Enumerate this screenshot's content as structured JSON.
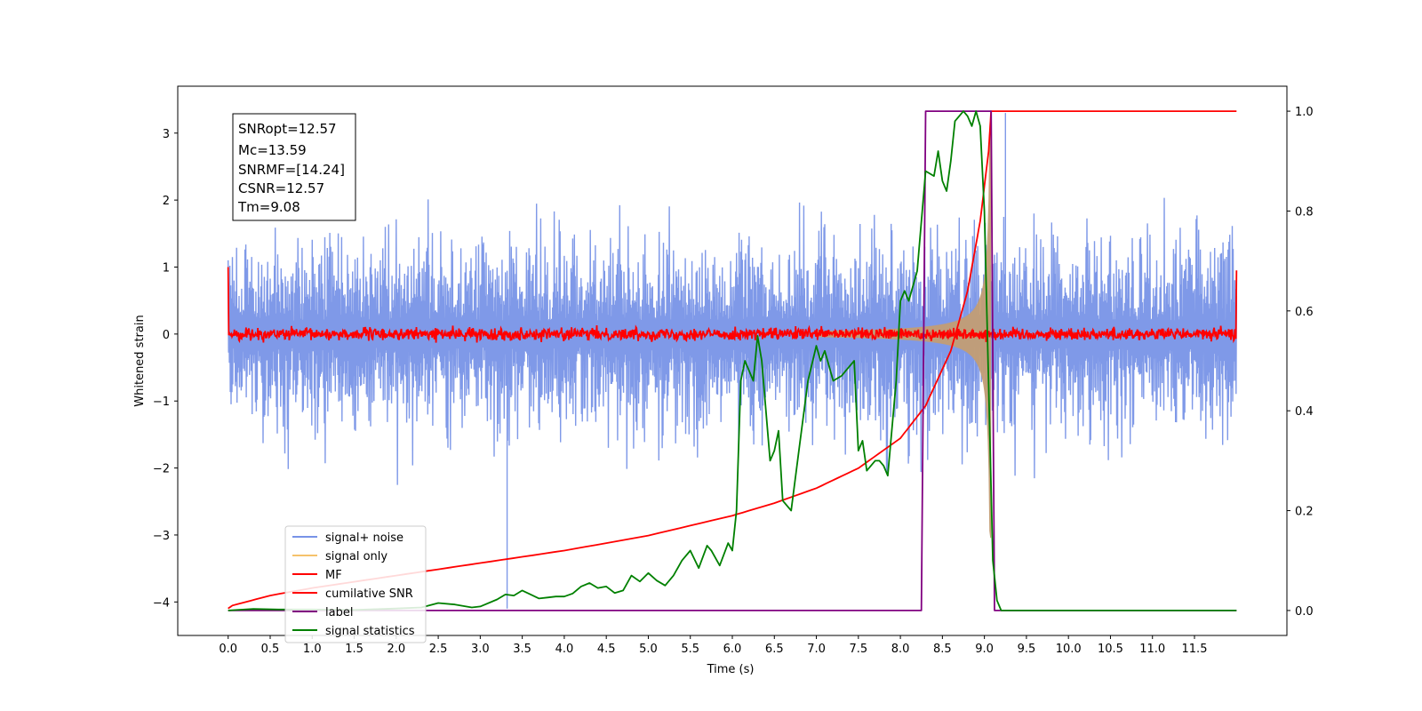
{
  "chart_data": {
    "type": "line",
    "xlabel": "Time (s)",
    "ylabel": "Whitened strain",
    "xlim": [
      -0.6,
      12.6
    ],
    "ylim": [
      -4.5,
      3.7
    ],
    "y2lim": [
      -0.05,
      1.05
    ],
    "x_ticks": [
      0.0,
      0.5,
      1.0,
      1.5,
      2.0,
      2.5,
      3.0,
      3.5,
      4.0,
      4.5,
      5.0,
      5.5,
      6.0,
      6.5,
      7.0,
      7.5,
      8.0,
      8.5,
      9.0,
      9.5,
      10.0,
      10.5,
      11.0,
      11.5
    ],
    "x_tick_labels": [
      "0.0",
      "0.5",
      "1.0",
      "1.5",
      "2.0",
      "2.5",
      "3.0",
      "3.5",
      "4.0",
      "4.5",
      "5.0",
      "5.5",
      "6.0",
      "6.5",
      "7.0",
      "7.5",
      "8.0",
      "8.5",
      "9.0",
      "9.5",
      "10.0",
      "10.5",
      "11.0",
      "11.5"
    ],
    "y_ticks": [
      -4,
      -3,
      -2,
      -1,
      0,
      1,
      2,
      3
    ],
    "y_tick_labels": [
      "−4",
      "−3",
      "−2",
      "−1",
      "0",
      "1",
      "2",
      "3"
    ],
    "y2_ticks": [
      0.0,
      0.2,
      0.4,
      0.6,
      0.8,
      1.0
    ],
    "y2_tick_labels": [
      "0.0",
      "0.2",
      "0.4",
      "0.6",
      "0.8",
      "1.0"
    ],
    "legend_position": "lower-left",
    "colors": {
      "noise": "#7893e7",
      "signal": "#f5c26b",
      "overlap": "#c39d74",
      "mf": "#ff0000",
      "csnr": "#ff0000",
      "label": "#800080",
      "stats": "#008000"
    },
    "info_box": {
      "snr_opt": "SNRopt=12.57",
      "mc": "Mc=13.59",
      "snr_mf": "SNRMF=[14.24]",
      "csnr": "CSNR=12.57",
      "tm": "Tm=9.08"
    },
    "series": [
      {
        "name": "signal+ noise",
        "axis": "left",
        "noise_amplitude": 1.6,
        "x_range": [
          0.0,
          12.0
        ],
        "spikes": [
          {
            "x": 3.32,
            "y": -4.1
          },
          {
            "x": 9.25,
            "y": 3.3
          }
        ]
      },
      {
        "name": "signal only",
        "axis": "left",
        "chirp_end": 9.08,
        "peak_amplitude": 3.2
      },
      {
        "name": "MF",
        "axis": "left",
        "noise_amplitude": 0.12,
        "x_range": [
          0.0,
          12.0
        ],
        "edges": [
          1.0,
          0.95
        ]
      },
      {
        "name": "cumilative SNR",
        "axis": "right",
        "x": [
          0.0,
          0.05,
          0.5,
          1.0,
          2.0,
          3.0,
          4.0,
          5.0,
          6.0,
          6.5,
          7.0,
          7.5,
          8.0,
          8.3,
          8.6,
          8.8,
          8.95,
          9.05,
          9.08,
          12.0
        ],
        "y": [
          0.004,
          0.01,
          0.03,
          0.045,
          0.07,
          0.095,
          0.12,
          0.15,
          0.19,
          0.215,
          0.245,
          0.285,
          0.345,
          0.41,
          0.52,
          0.64,
          0.78,
          0.92,
          1.0,
          1.0
        ]
      },
      {
        "name": "label",
        "axis": "right",
        "x": [
          0.0,
          8.25,
          8.3,
          9.08,
          9.12,
          12.0
        ],
        "y": [
          0.0,
          0.0,
          1.0,
          1.0,
          0.0,
          0.0
        ]
      },
      {
        "name": "signal statistics",
        "axis": "right",
        "x": [
          0.0,
          0.3,
          0.6,
          1.0,
          1.5,
          2.0,
          2.3,
          2.5,
          2.7,
          2.9,
          3.0,
          3.2,
          3.3,
          3.4,
          3.5,
          3.6,
          3.7,
          3.8,
          3.9,
          4.0,
          4.1,
          4.2,
          4.3,
          4.4,
          4.5,
          4.6,
          4.7,
          4.8,
          4.9,
          5.0,
          5.1,
          5.2,
          5.3,
          5.4,
          5.5,
          5.6,
          5.7,
          5.75,
          5.85,
          5.95,
          6.0,
          6.05,
          6.1,
          6.15,
          6.25,
          6.3,
          6.35,
          6.45,
          6.5,
          6.55,
          6.6,
          6.7,
          6.8,
          6.9,
          7.0,
          7.05,
          7.1,
          7.2,
          7.3,
          7.35,
          7.45,
          7.5,
          7.55,
          7.6,
          7.7,
          7.75,
          7.8,
          7.85,
          7.95,
          8.0,
          8.05,
          8.1,
          8.2,
          8.3,
          8.4,
          8.45,
          8.5,
          8.55,
          8.6,
          8.65,
          8.75,
          8.8,
          8.85,
          8.9,
          8.95,
          9.0,
          9.05,
          9.1,
          9.15,
          9.2,
          9.3,
          12.0
        ],
        "y": [
          0.0,
          0.003,
          0.002,
          0.002,
          0.001,
          0.004,
          0.006,
          0.015,
          0.012,
          0.006,
          0.008,
          0.022,
          0.032,
          0.03,
          0.04,
          0.032,
          0.024,
          0.026,
          0.028,
          0.028,
          0.034,
          0.048,
          0.055,
          0.045,
          0.048,
          0.035,
          0.04,
          0.07,
          0.058,
          0.075,
          0.06,
          0.05,
          0.07,
          0.1,
          0.12,
          0.085,
          0.13,
          0.12,
          0.09,
          0.135,
          0.12,
          0.2,
          0.46,
          0.5,
          0.46,
          0.55,
          0.5,
          0.3,
          0.32,
          0.36,
          0.22,
          0.2,
          0.33,
          0.46,
          0.53,
          0.5,
          0.52,
          0.46,
          0.47,
          0.48,
          0.5,
          0.32,
          0.34,
          0.28,
          0.3,
          0.3,
          0.29,
          0.27,
          0.46,
          0.62,
          0.64,
          0.62,
          0.68,
          0.88,
          0.87,
          0.92,
          0.86,
          0.84,
          0.9,
          0.98,
          1.0,
          0.99,
          0.97,
          1.0,
          0.97,
          0.8,
          0.45,
          0.1,
          0.02,
          0.0,
          0.0,
          0.0
        ]
      }
    ]
  }
}
